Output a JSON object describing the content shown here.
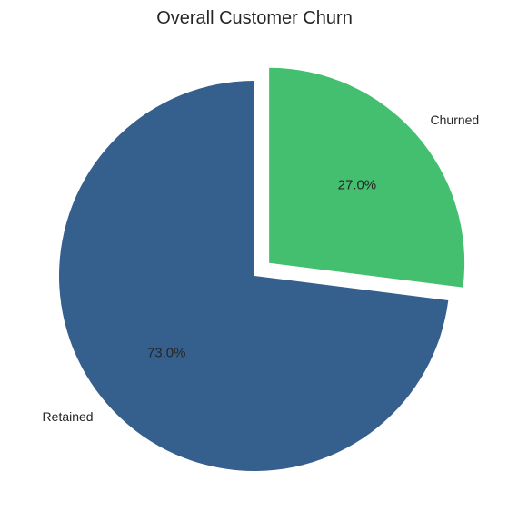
{
  "chart_data": {
    "type": "pie",
    "title": "Overall Customer Churn",
    "slices": [
      {
        "label": "Retained",
        "value": 73.0,
        "pct_label": "73.0%",
        "color": "#355f8d",
        "explode": 0.0
      },
      {
        "label": "Churned",
        "value": 27.0,
        "pct_label": "27.0%",
        "color": "#44bf70",
        "explode": 0.1
      }
    ],
    "start_angle_deg": 90,
    "direction": "counterclockwise",
    "legend": "none"
  }
}
